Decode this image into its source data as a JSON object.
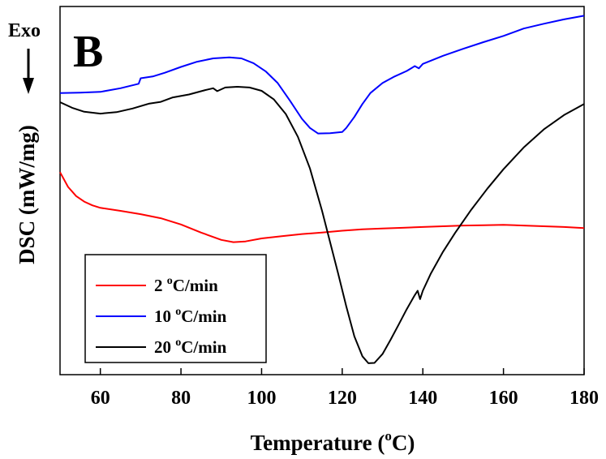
{
  "chart_data": {
    "type": "line",
    "panel_label": "B",
    "exo_label": "Exo",
    "xlabel_main": "Temperature (",
    "xlabel_sup": "o",
    "xlabel_end": "C)",
    "ylabel": "DSC (mW/mg)",
    "xlim": [
      50,
      180
    ],
    "ylim": [
      0,
      100
    ],
    "x_ticks": [
      60,
      80,
      100,
      120,
      140,
      160,
      180
    ],
    "y_ticks_labeled": false,
    "grid": false,
    "legend_position": "bottom-left",
    "series": [
      {
        "name_main": "2 ",
        "name_sup": "o",
        "name_end": "C/min",
        "color": "#ff0000",
        "points": [
          [
            50,
            55
          ],
          [
            52,
            51
          ],
          [
            54,
            48.5
          ],
          [
            56,
            47
          ],
          [
            58,
            46
          ],
          [
            60,
            45.3
          ],
          [
            65,
            44.5
          ],
          [
            70,
            43.6
          ],
          [
            75,
            42.5
          ],
          [
            80,
            40.8
          ],
          [
            85,
            38.6
          ],
          [
            90,
            36.6
          ],
          [
            93,
            36
          ],
          [
            96,
            36.2
          ],
          [
            100,
            37
          ],
          [
            105,
            37.6
          ],
          [
            110,
            38.2
          ],
          [
            115,
            38.6
          ],
          [
            120,
            39.1
          ],
          [
            125,
            39.5
          ],
          [
            130,
            39.7
          ],
          [
            135,
            39.9
          ],
          [
            140,
            40.1
          ],
          [
            145,
            40.3
          ],
          [
            150,
            40.5
          ],
          [
            155,
            40.6
          ],
          [
            160,
            40.7
          ],
          [
            165,
            40.5
          ],
          [
            170,
            40.3
          ],
          [
            175,
            40.1
          ],
          [
            180,
            39.8
          ]
        ]
      },
      {
        "name_main": "10 ",
        "name_sup": "o",
        "name_end": "C/min",
        "color": "#0000ff",
        "points": [
          [
            50,
            76.5
          ],
          [
            55,
            76.6
          ],
          [
            60,
            76.8
          ],
          [
            65,
            77.8
          ],
          [
            69.5,
            79
          ],
          [
            70,
            80.5
          ],
          [
            73,
            81
          ],
          [
            76,
            82
          ],
          [
            80,
            83.6
          ],
          [
            84,
            85
          ],
          [
            88,
            85.9
          ],
          [
            92,
            86.2
          ],
          [
            95,
            85.9
          ],
          [
            98,
            84.6
          ],
          [
            101,
            82.4
          ],
          [
            104,
            79.2
          ],
          [
            107,
            74.5
          ],
          [
            110,
            69.5
          ],
          [
            112,
            67
          ],
          [
            114,
            65.5
          ],
          [
            117,
            65.6
          ],
          [
            120,
            65.9
          ],
          [
            121,
            67
          ],
          [
            123,
            70
          ],
          [
            125,
            73.5
          ],
          [
            127,
            76.5
          ],
          [
            130,
            79.2
          ],
          [
            133,
            81
          ],
          [
            136,
            82.5
          ],
          [
            138,
            83.8
          ],
          [
            139,
            83.2
          ],
          [
            140,
            84.4
          ],
          [
            145,
            86.6
          ],
          [
            150,
            88.5
          ],
          [
            155,
            90.3
          ],
          [
            160,
            92
          ],
          [
            165,
            94
          ],
          [
            170,
            95.3
          ],
          [
            175,
            96.5
          ],
          [
            180,
            97.5
          ]
        ]
      },
      {
        "name_main": "20 ",
        "name_sup": "o",
        "name_end": "C/min",
        "color": "#000000",
        "points": [
          [
            50,
            74
          ],
          [
            53,
            72.5
          ],
          [
            56,
            71.4
          ],
          [
            60,
            70.9
          ],
          [
            64,
            71.3
          ],
          [
            68,
            72.3
          ],
          [
            72,
            73.6
          ],
          [
            75,
            74.1
          ],
          [
            78,
            75.3
          ],
          [
            82,
            76.1
          ],
          [
            86,
            77.3
          ],
          [
            88,
            77.8
          ],
          [
            89,
            77
          ],
          [
            91,
            78
          ],
          [
            94,
            78.2
          ],
          [
            97,
            78
          ],
          [
            100,
            77.1
          ],
          [
            103,
            74.8
          ],
          [
            106,
            70.8
          ],
          [
            109,
            64.6
          ],
          [
            112,
            56
          ],
          [
            115,
            44.5
          ],
          [
            117,
            36
          ],
          [
            119,
            27.4
          ],
          [
            121,
            18.6
          ],
          [
            123,
            10.4
          ],
          [
            125,
            5
          ],
          [
            126.5,
            3.1
          ],
          [
            128,
            3.2
          ],
          [
            130,
            5.6
          ],
          [
            132,
            9.5
          ],
          [
            134,
            13.6
          ],
          [
            136,
            17.8
          ],
          [
            138,
            21.6
          ],
          [
            138.7,
            22.8
          ],
          [
            139.3,
            20.5
          ],
          [
            140,
            22.8
          ],
          [
            142,
            27.5
          ],
          [
            145,
            33.4
          ],
          [
            148,
            38.5
          ],
          [
            152,
            44.8
          ],
          [
            156,
            50.5
          ],
          [
            160,
            55.8
          ],
          [
            165,
            61.7
          ],
          [
            170,
            66.6
          ],
          [
            175,
            70.5
          ],
          [
            180,
            73.5
          ]
        ]
      }
    ]
  }
}
